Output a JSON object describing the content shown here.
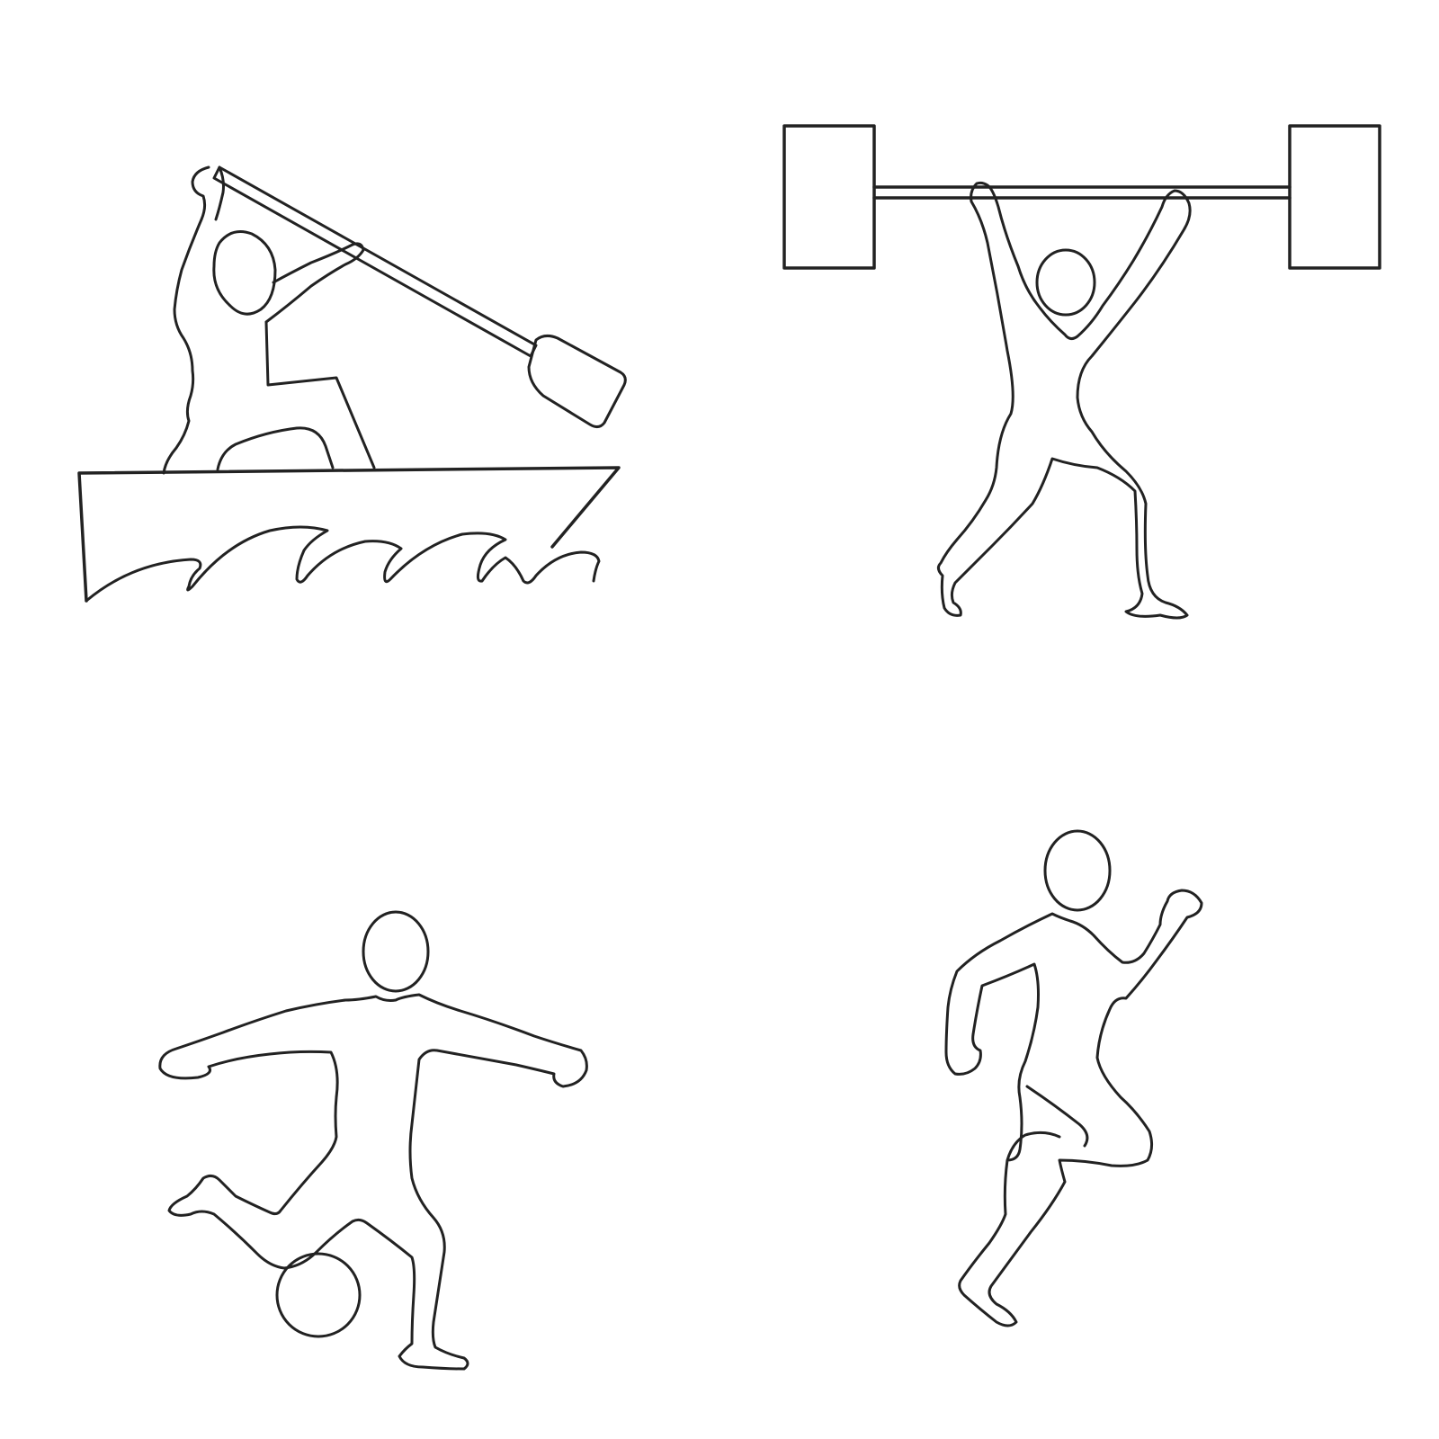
{
  "colors": {
    "background": "#ffffff",
    "ink": "#222222"
  },
  "pictograms": [
    {
      "name": "canoe-sprint-icon"
    },
    {
      "name": "weightlifting-icon"
    },
    {
      "name": "football-icon"
    },
    {
      "name": "running-icon"
    }
  ]
}
